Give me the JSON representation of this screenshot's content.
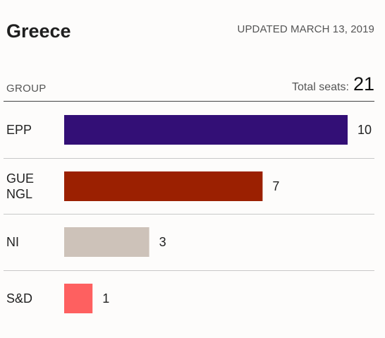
{
  "header": {
    "title": "Greece",
    "updated": "UPDATED MARCH 13, 2019"
  },
  "table": {
    "group_header": "GROUP",
    "total_label": "Total seats:",
    "total_value": "21"
  },
  "chart_data": {
    "type": "bar",
    "orientation": "horizontal",
    "categories": [
      "EPP",
      "GUE\nNGL",
      "NI",
      "S&D"
    ],
    "values": [
      10,
      7,
      3,
      1
    ],
    "colors": [
      "#330f76",
      "#9b2001",
      "#cdc2b9",
      "#fe6060"
    ],
    "xlim": [
      0,
      10
    ],
    "grid": false
  }
}
